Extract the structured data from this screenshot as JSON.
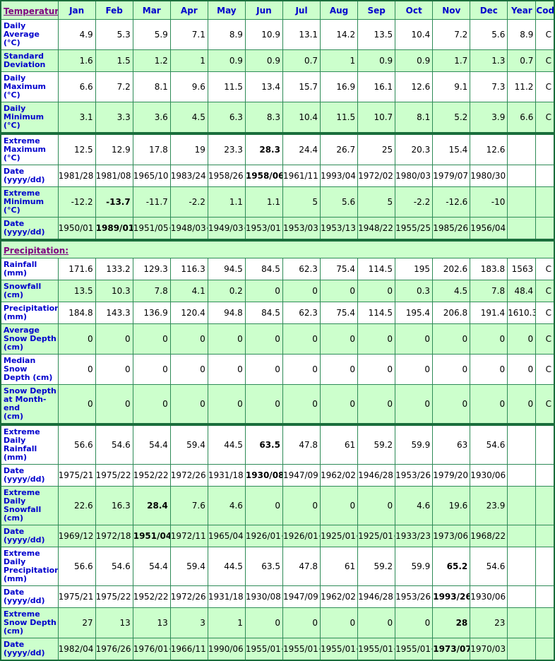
{
  "palette": {
    "cell_green": "#ccffcc",
    "cell_white": "#ffffff",
    "border_green": "#2e8b57",
    "outer_border_green": "#1a6e3c",
    "label_blue": "#0000cc",
    "section_link_purple": "#800080",
    "data_black": "#000000"
  },
  "columns": [
    "Jan",
    "Feb",
    "Mar",
    "Apr",
    "May",
    "Jun",
    "Jul",
    "Aug",
    "Sep",
    "Oct",
    "Nov",
    "Dec",
    "Year",
    "Code"
  ],
  "sections": [
    {
      "id": "temperature_normals",
      "link_label": "Temperature:",
      "header_type": "months",
      "rows": [
        {
          "label": "Daily Average\n(°C)",
          "bg": "w",
          "bold": [],
          "values": [
            "4.9",
            "5.3",
            "5.9",
            "7.1",
            "8.9",
            "10.9",
            "13.1",
            "14.2",
            "13.5",
            "10.4",
            "7.2",
            "5.6",
            "8.9",
            "C"
          ]
        },
        {
          "label": "Standard\nDeviation",
          "bg": "g",
          "bold": [],
          "values": [
            "1.6",
            "1.5",
            "1.2",
            "1",
            "0.9",
            "0.9",
            "0.7",
            "1",
            "0.9",
            "0.9",
            "1.7",
            "1.3",
            "0.7",
            "C"
          ]
        },
        {
          "label": "Daily\nMaximum\n(°C)",
          "bg": "w",
          "bold": [],
          "values": [
            "6.6",
            "7.2",
            "8.1",
            "9.6",
            "11.5",
            "13.4",
            "15.7",
            "16.9",
            "16.1",
            "12.6",
            "9.1",
            "7.3",
            "11.2",
            "C"
          ]
        },
        {
          "label": "Daily\nMinimum\n(°C)",
          "bg": "g",
          "bold": [],
          "values": [
            "3.1",
            "3.3",
            "3.6",
            "4.5",
            "6.3",
            "8.3",
            "10.4",
            "11.5",
            "10.7",
            "8.1",
            "5.2",
            "3.9",
            "6.6",
            "C"
          ]
        }
      ]
    },
    {
      "id": "temperature_extremes",
      "header_type": "none",
      "rows": [
        {
          "label": "Extreme\nMaximum\n(°C)",
          "bg": "w",
          "bold": [
            5
          ],
          "values": [
            "12.5",
            "12.9",
            "17.8",
            "19",
            "23.3",
            "28.3",
            "24.4",
            "26.7",
            "25",
            "20.3",
            "15.4",
            "12.6",
            "",
            ""
          ]
        },
        {
          "label": "Date\n(yyyy/dd)",
          "bg": "w",
          "bold": [
            5
          ],
          "values": [
            "1981/28",
            "1981/08",
            "1965/10",
            "1983/24",
            "1958/26",
            "1958/06",
            "1961/11",
            "1993/04",
            "1972/02",
            "1980/03",
            "1979/07",
            "1980/30",
            "",
            ""
          ]
        },
        {
          "label": "Extreme\nMinimum\n(°C)",
          "bg": "g",
          "bold": [
            1
          ],
          "values": [
            "-12.2",
            "-13.7",
            "-11.7",
            "-2.2",
            "1.1",
            "1.1",
            "5",
            "5.6",
            "5",
            "-2.2",
            "-12.6",
            "-10",
            "",
            ""
          ]
        },
        {
          "label": "Date\n(yyyy/dd)",
          "bg": "g",
          "bold": [
            1
          ],
          "values": [
            "1950/01",
            "1989/01",
            "1951/05+",
            "1948/03+",
            "1949/03+",
            "1953/01",
            "1953/03",
            "1953/13",
            "1948/22",
            "1955/25",
            "1985/26",
            "1956/04",
            "",
            ""
          ]
        }
      ]
    },
    {
      "id": "precipitation_normals",
      "link_label": "Precipitation:",
      "header_type": "span",
      "rows": [
        {
          "label": "Rainfall (mm)",
          "bg": "w",
          "bold": [],
          "values": [
            "171.6",
            "133.2",
            "129.3",
            "116.3",
            "94.5",
            "84.5",
            "62.3",
            "75.4",
            "114.5",
            "195",
            "202.6",
            "183.8",
            "1563",
            "C"
          ]
        },
        {
          "label": "Snowfall\n(cm)",
          "bg": "g",
          "bold": [],
          "values": [
            "13.5",
            "10.3",
            "7.8",
            "4.1",
            "0.2",
            "0",
            "0",
            "0",
            "0",
            "0.3",
            "4.5",
            "7.8",
            "48.4",
            "C"
          ]
        },
        {
          "label": "Precipitation\n(mm)",
          "bg": "w",
          "bold": [],
          "values": [
            "184.8",
            "143.3",
            "136.9",
            "120.4",
            "94.8",
            "84.5",
            "62.3",
            "75.4",
            "114.5",
            "195.4",
            "206.8",
            "191.4",
            "1610.3",
            "C"
          ]
        },
        {
          "label": "Average\nSnow Depth\n(cm)",
          "bg": "g",
          "bold": [],
          "values": [
            "0",
            "0",
            "0",
            "0",
            "0",
            "0",
            "0",
            "0",
            "0",
            "0",
            "0",
            "0",
            "0",
            "C"
          ]
        },
        {
          "label": "Median Snow\nDepth (cm)",
          "bg": "w",
          "bold": [],
          "values": [
            "0",
            "0",
            "0",
            "0",
            "0",
            "0",
            "0",
            "0",
            "0",
            "0",
            "0",
            "0",
            "0",
            "C"
          ]
        },
        {
          "label": "Snow Depth\nat Month-end\n(cm)",
          "bg": "g",
          "bold": [],
          "values": [
            "0",
            "0",
            "0",
            "0",
            "0",
            "0",
            "0",
            "0",
            "0",
            "0",
            "0",
            "0",
            "0",
            "C"
          ]
        }
      ]
    },
    {
      "id": "precipitation_extremes",
      "header_type": "none",
      "rows": [
        {
          "label": "Extreme Daily\nRainfall (mm)",
          "bg": "w",
          "bold": [
            5
          ],
          "values": [
            "56.6",
            "54.6",
            "54.4",
            "59.4",
            "44.5",
            "63.5",
            "47.8",
            "61",
            "59.2",
            "59.9",
            "63",
            "54.6",
            "",
            ""
          ]
        },
        {
          "label": "Date\n(yyyy/dd)",
          "bg": "w",
          "bold": [
            5
          ],
          "values": [
            "1975/21",
            "1975/22",
            "1952/22",
            "1972/26",
            "1931/18",
            "1930/08",
            "1947/09",
            "1962/02",
            "1946/28",
            "1953/26",
            "1979/20",
            "1930/06",
            "",
            ""
          ]
        },
        {
          "label": "Extreme Daily\nSnowfall\n(cm)",
          "bg": "g",
          "bold": [
            2
          ],
          "values": [
            "22.6",
            "16.3",
            "28.4",
            "7.6",
            "4.6",
            "0",
            "0",
            "0",
            "0",
            "4.6",
            "19.6",
            "23.9",
            "",
            ""
          ]
        },
        {
          "label": "Date\n(yyyy/dd)",
          "bg": "g",
          "bold": [
            2
          ],
          "values": [
            "1969/12",
            "1972/18",
            "1951/04",
            "1972/11",
            "1965/04",
            "1926/01+",
            "1926/01+",
            "1925/01+",
            "1925/01+",
            "1933/23",
            "1973/06",
            "1968/22",
            "",
            ""
          ]
        },
        {
          "label": "Extreme Daily\nPrecipitation\n(mm)",
          "bg": "w",
          "bold": [
            10
          ],
          "values": [
            "56.6",
            "54.6",
            "54.4",
            "59.4",
            "44.5",
            "63.5",
            "47.8",
            "61",
            "59.2",
            "59.9",
            "65.2",
            "54.6",
            "",
            ""
          ]
        },
        {
          "label": "Date\n(yyyy/dd)",
          "bg": "w",
          "bold": [
            10
          ],
          "values": [
            "1975/21",
            "1975/22",
            "1952/22",
            "1972/26",
            "1931/18",
            "1930/08",
            "1947/09",
            "1962/02",
            "1946/28",
            "1953/26",
            "1993/26",
            "1930/06",
            "",
            ""
          ]
        },
        {
          "label": "Extreme\nSnow Depth\n(cm)",
          "bg": "g",
          "bold": [
            10
          ],
          "values": [
            "27",
            "13",
            "13",
            "3",
            "1",
            "0",
            "0",
            "0",
            "0",
            "0",
            "28",
            "23",
            "",
            ""
          ]
        },
        {
          "label": "Date\n(yyyy/dd)",
          "bg": "g",
          "bold": [
            10
          ],
          "values": [
            "1982/04",
            "1976/26",
            "1976/01+",
            "1966/11",
            "1990/06",
            "1955/01+",
            "1955/01+",
            "1955/01+",
            "1955/01+",
            "1955/01+",
            "1973/07",
            "1970/03",
            "",
            ""
          ]
        }
      ]
    }
  ]
}
